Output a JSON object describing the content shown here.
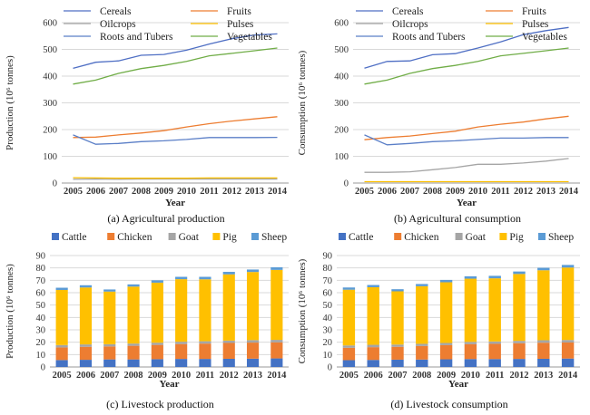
{
  "chart_data": [
    {
      "type": "line",
      "caption": "(a) Agricultural production",
      "xlabel": "Year",
      "ylabel": "Production (10⁶ tonnes)",
      "ylim": [
        0,
        600
      ],
      "yticks": [
        0,
        100,
        200,
        300,
        400,
        500,
        600
      ],
      "x": [
        "2005",
        "2006",
        "2007",
        "2008",
        "2009",
        "2010",
        "2011",
        "2012",
        "2013",
        "2014"
      ],
      "grid": "horizontal",
      "legend": "top",
      "series": [
        {
          "name": "Cereals",
          "color": "#4f6fc4",
          "values": [
            429,
            452,
            457,
            478,
            481,
            497,
            520,
            540,
            554,
            558
          ]
        },
        {
          "name": "Fruits",
          "color": "#ed7d31",
          "values": [
            170,
            172,
            180,
            187,
            196,
            210,
            222,
            232,
            240,
            248
          ]
        },
        {
          "name": "Oilcrops",
          "color": "#a5a5a5",
          "values": [
            14,
            15,
            14,
            15,
            15,
            15,
            15,
            15,
            15,
            15
          ]
        },
        {
          "name": "Pulses",
          "color": "#ffc000",
          "values": [
            20,
            19,
            18,
            18,
            18,
            18,
            19,
            19,
            19,
            19
          ]
        },
        {
          "name": "Roots and Tubers",
          "color": "#5b7fc7",
          "values": [
            180,
            145,
            148,
            155,
            158,
            163,
            170,
            170,
            170,
            171
          ]
        },
        {
          "name": "Vegetables",
          "color": "#70ad47",
          "values": [
            370,
            385,
            410,
            428,
            440,
            455,
            476,
            485,
            495,
            505
          ]
        }
      ]
    },
    {
      "type": "line",
      "caption": "(b) Agricultural consumption",
      "xlabel": "Year",
      "ylabel": "Consumption (10⁶ tonnes)",
      "ylim": [
        0,
        600
      ],
      "yticks": [
        0,
        100,
        200,
        300,
        400,
        500,
        600
      ],
      "x": [
        "2005",
        "2006",
        "2007",
        "2008",
        "2009",
        "2010",
        "2011",
        "2012",
        "2013",
        "2014"
      ],
      "grid": "horizontal",
      "legend": "top",
      "series": [
        {
          "name": "Cereals",
          "color": "#4f6fc4",
          "values": [
            430,
            455,
            457,
            480,
            484,
            505,
            528,
            555,
            570,
            582
          ]
        },
        {
          "name": "Fruits",
          "color": "#ed7d31",
          "values": [
            162,
            170,
            176,
            185,
            194,
            210,
            220,
            228,
            240,
            250
          ]
        },
        {
          "name": "Oilcrops",
          "color": "#a5a5a5",
          "values": [
            40,
            40,
            42,
            50,
            58,
            70,
            70,
            75,
            82,
            92
          ]
        },
        {
          "name": "Pulses",
          "color": "#ffc000",
          "values": [
            5,
            5,
            5,
            5,
            5,
            5,
            5,
            5,
            5,
            5
          ]
        },
        {
          "name": "Roots and Tubers",
          "color": "#5b7fc7",
          "values": [
            180,
            143,
            148,
            155,
            158,
            163,
            168,
            168,
            170,
            170
          ]
        },
        {
          "name": "Vegetables",
          "color": "#70ad47",
          "values": [
            370,
            385,
            410,
            428,
            440,
            455,
            476,
            485,
            495,
            505
          ]
        }
      ]
    },
    {
      "type": "bar",
      "stacked": true,
      "caption": "(c) Livestock production",
      "xlabel": "Year",
      "ylabel": "Production (10⁶ tonnes)",
      "ylim": [
        0,
        90
      ],
      "yticks": [
        0,
        10,
        20,
        30,
        40,
        50,
        60,
        70,
        80,
        90
      ],
      "categories": [
        "2005",
        "2006",
        "2007",
        "2008",
        "2009",
        "2010",
        "2011",
        "2012",
        "2013",
        "2014"
      ],
      "grid": "horizontal",
      "legend": "top",
      "series": [
        {
          "name": "Cattle",
          "color": "#4472c4",
          "values": [
            5.6,
            5.8,
            6.1,
            6.1,
            6.3,
            6.5,
            6.5,
            6.6,
            6.7,
            6.9
          ]
        },
        {
          "name": "Chicken",
          "color": "#ed7d31",
          "values": [
            10.2,
            10.5,
            10.5,
            11.0,
            11.5,
            12.0,
            12.4,
            12.8,
            13.0,
            13.0
          ]
        },
        {
          "name": "Goat",
          "color": "#a5a5a5",
          "values": [
            1.9,
            1.9,
            1.8,
            1.8,
            1.8,
            1.9,
            1.9,
            1.9,
            2.0,
            2.0
          ]
        },
        {
          "name": "Pig",
          "color": "#ffc000",
          "values": [
            44.5,
            46.0,
            42.5,
            46.0,
            48.5,
            50.5,
            50.0,
            53.5,
            55.0,
            56.5
          ]
        },
        {
          "name": "Sheep",
          "color": "#5b9bd5",
          "values": [
            1.8,
            1.8,
            1.7,
            1.8,
            1.9,
            1.9,
            2.0,
            2.0,
            2.0,
            2.1
          ]
        }
      ]
    },
    {
      "type": "bar",
      "stacked": true,
      "caption": "(d) Livestock consumption",
      "xlabel": "Year",
      "ylabel": "Consumption (10⁶ tonnes)",
      "ylim": [
        0,
        90
      ],
      "yticks": [
        0,
        10,
        20,
        30,
        40,
        50,
        60,
        70,
        80,
        90
      ],
      "categories": [
        "2005",
        "2006",
        "2007",
        "2008",
        "2009",
        "2010",
        "2011",
        "2012",
        "2013",
        "2014"
      ],
      "grid": "horizontal",
      "legend": "top",
      "series": [
        {
          "name": "Cattle",
          "color": "#4472c4",
          "values": [
            5.5,
            5.7,
            5.9,
            6.0,
            6.2,
            6.4,
            6.4,
            6.5,
            6.6,
            6.8
          ]
        },
        {
          "name": "Chicken",
          "color": "#ed7d31",
          "values": [
            10.0,
            10.3,
            10.4,
            10.9,
            11.4,
            12.0,
            12.3,
            12.7,
            13.0,
            13.0
          ]
        },
        {
          "name": "Goat",
          "color": "#a5a5a5",
          "values": [
            1.9,
            1.9,
            1.8,
            1.8,
            1.8,
            1.9,
            1.9,
            1.9,
            2.0,
            2.0
          ]
        },
        {
          "name": "Pig",
          "color": "#ffc000",
          "values": [
            45.0,
            46.5,
            43.0,
            46.5,
            49.0,
            51.0,
            51.0,
            54.0,
            56.5,
            58.5
          ]
        },
        {
          "name": "Sheep",
          "color": "#5b9bd5",
          "values": [
            1.8,
            1.8,
            1.7,
            1.8,
            1.9,
            1.9,
            2.0,
            2.0,
            2.0,
            2.1
          ]
        }
      ]
    }
  ]
}
